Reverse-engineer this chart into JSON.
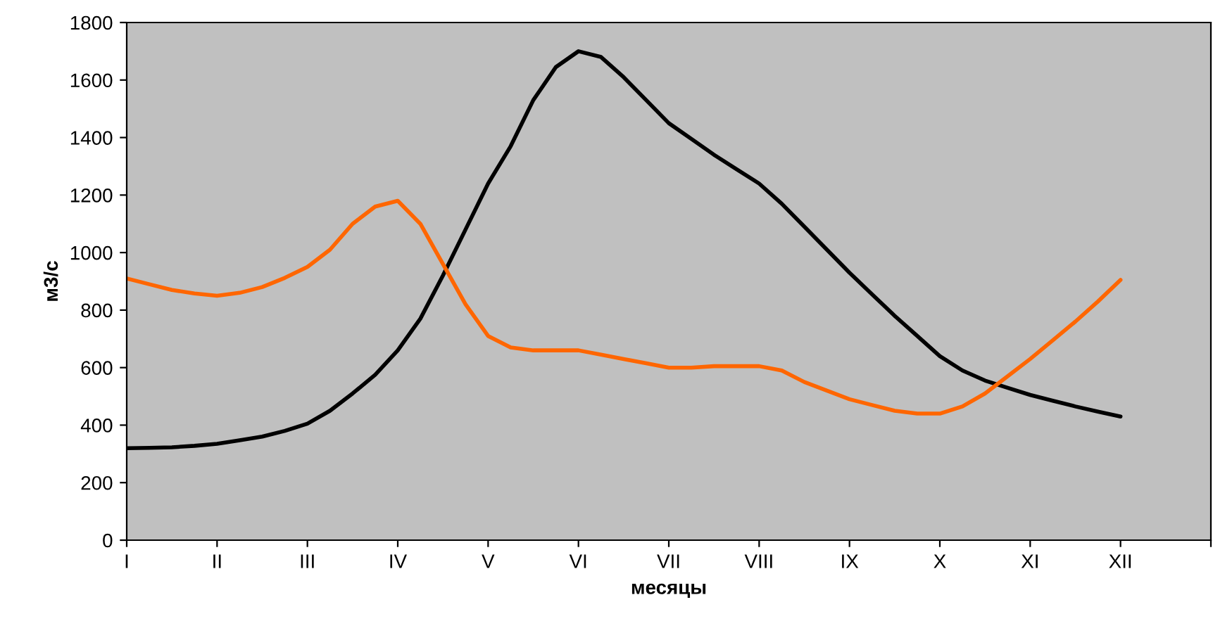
{
  "chart_data": {
    "type": "line",
    "xlabel": "месяцы",
    "ylabel": "м3/с",
    "categories": [
      "I",
      null,
      null,
      null,
      "II",
      null,
      null,
      null,
      "III",
      null,
      null,
      null,
      "IV",
      null,
      null,
      null,
      "V",
      null,
      null,
      null,
      "VI",
      null,
      null,
      null,
      "VII",
      null,
      null,
      null,
      "VIII",
      null,
      null,
      null,
      "IX",
      null,
      null,
      null,
      "X",
      null,
      null,
      null,
      "XI",
      null,
      null,
      null,
      "XII",
      null,
      null,
      null,
      null
    ],
    "ylim": [
      0,
      1800
    ],
    "yticks": [
      0,
      200,
      400,
      600,
      800,
      1000,
      1200,
      1400,
      1600,
      1800
    ],
    "grid": false,
    "legend": false,
    "marker": "none",
    "line_style": "solid",
    "series": [
      {
        "color": "#000000",
        "values": [
          320,
          321,
          323,
          328,
          335,
          347,
          360,
          380,
          405,
          450,
          510,
          575,
          660,
          770,
          920,
          1080,
          1240,
          1370,
          1530,
          1645,
          1700,
          1680,
          1610,
          1530,
          1450,
          1395,
          1340,
          1290,
          1240,
          1170,
          1090,
          1010,
          930,
          855,
          780,
          710,
          640,
          590,
          555,
          530,
          505,
          485,
          465,
          447,
          430,
          null,
          null,
          null,
          null
        ]
      },
      {
        "color": "#ff6600",
        "values": [
          910,
          890,
          870,
          858,
          850,
          860,
          880,
          912,
          950,
          1010,
          1100,
          1160,
          1180,
          1100,
          960,
          820,
          710,
          670,
          660,
          660,
          660,
          645,
          630,
          615,
          600,
          600,
          605,
          605,
          605,
          590,
          550,
          520,
          490,
          470,
          450,
          440,
          440,
          465,
          510,
          570,
          630,
          695,
          760,
          830,
          905,
          null,
          null,
          null,
          null
        ]
      }
    ]
  }
}
